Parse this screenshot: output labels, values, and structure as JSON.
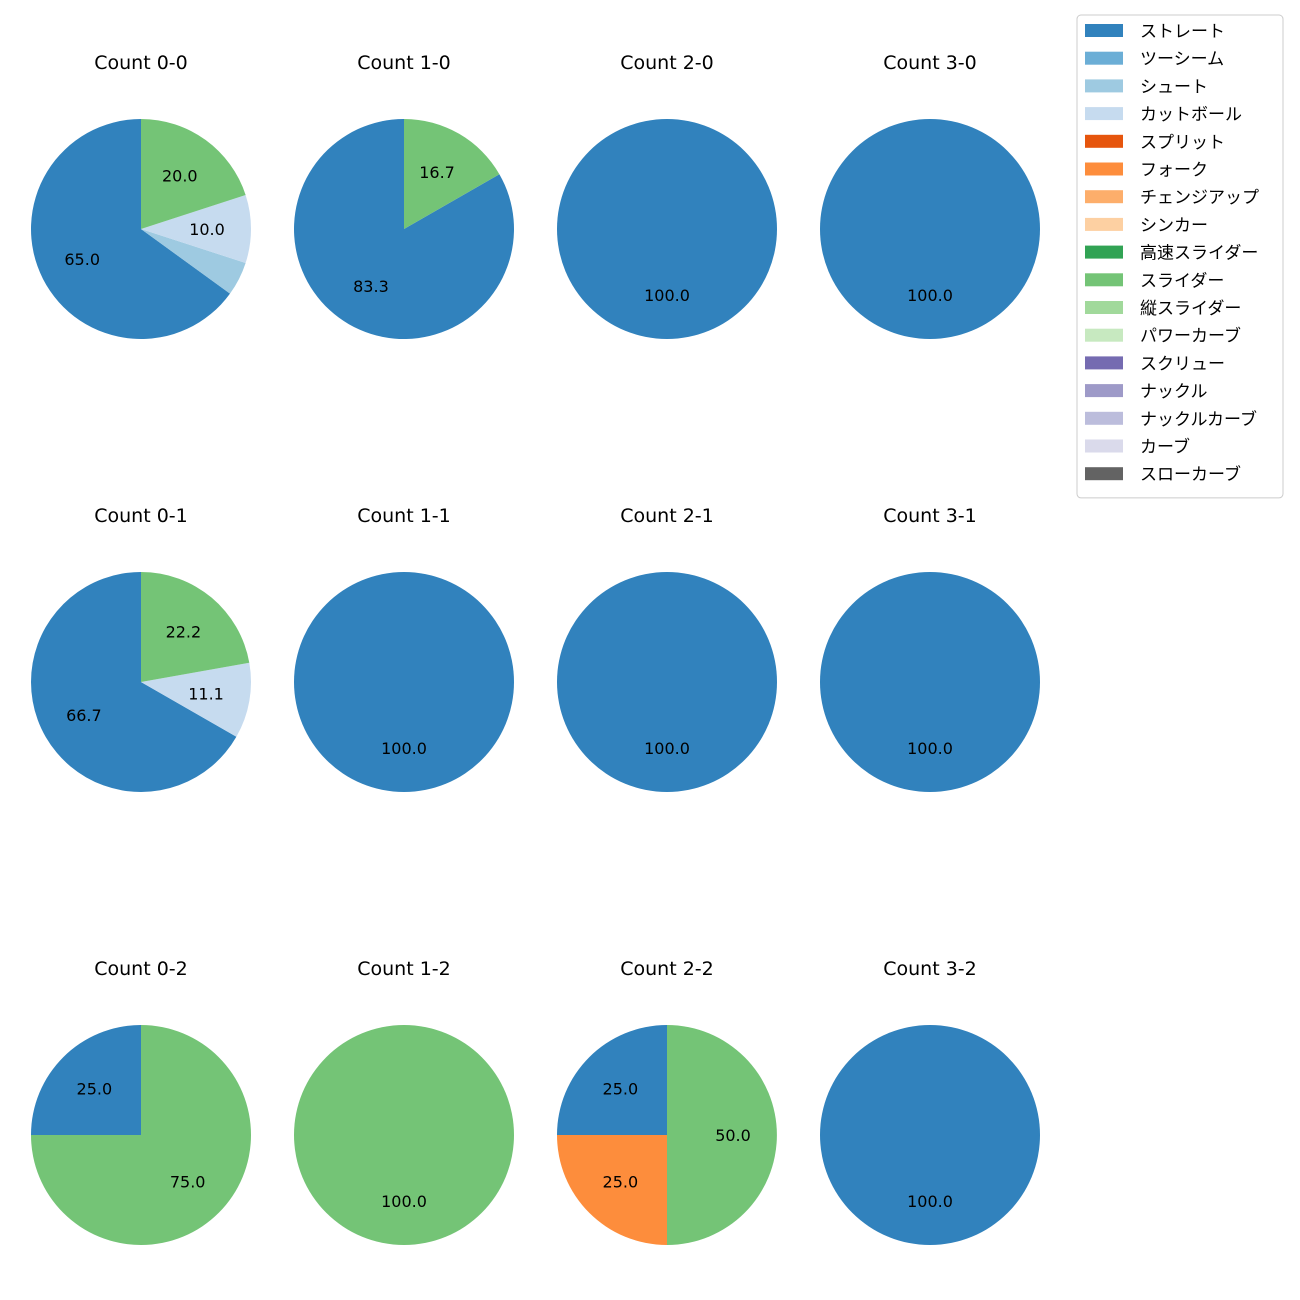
{
  "colors": {
    "ストレート": "#3182bd",
    "ツーシーム": "#6baed6",
    "シュート": "#9ecae1",
    "カットボール": "#c6dbef",
    "スプリット": "#e6550d",
    "フォーク": "#fd8d3c",
    "チェンジアップ": "#fdae6b",
    "シンカー": "#fdd0a2",
    "高速スライダー": "#31a354",
    "スライダー": "#74c476",
    "縦スライダー": "#a1d99b",
    "パワーカーブ": "#c7e9c0",
    "スクリュー": "#756bb1",
    "ナックル": "#9e9ac8",
    "ナックルカーブ": "#bcbddc",
    "カーブ": "#dadaeb",
    "スローカーブ": "#636363"
  },
  "legend": [
    "ストレート",
    "ツーシーム",
    "シュート",
    "カットボール",
    "スプリット",
    "フォーク",
    "チェンジアップ",
    "シンカー",
    "高速スライダー",
    "スライダー",
    "縦スライダー",
    "パワーカーブ",
    "スクリュー",
    "ナックル",
    "ナックルカーブ",
    "カーブ",
    "スローカーブ"
  ],
  "chart_data": [
    {
      "type": "pie",
      "title": "Count 0-0",
      "slices": [
        {
          "label": "ストレート",
          "value": 65.0,
          "shown": "65.0"
        },
        {
          "label": "シュート",
          "value": 5.0,
          "shown": ""
        },
        {
          "label": "カットボール",
          "value": 10.0,
          "shown": "10.0"
        },
        {
          "label": "スライダー",
          "value": 20.0,
          "shown": "20.0"
        }
      ]
    },
    {
      "type": "pie",
      "title": "Count 1-0",
      "slices": [
        {
          "label": "ストレート",
          "value": 83.3,
          "shown": "83.3"
        },
        {
          "label": "スライダー",
          "value": 16.7,
          "shown": "16.7"
        }
      ]
    },
    {
      "type": "pie",
      "title": "Count 2-0",
      "slices": [
        {
          "label": "ストレート",
          "value": 100.0,
          "shown": "100.0"
        }
      ]
    },
    {
      "type": "pie",
      "title": "Count 3-0",
      "slices": [
        {
          "label": "ストレート",
          "value": 100.0,
          "shown": "100.0"
        }
      ]
    },
    {
      "type": "pie",
      "title": "Count 0-1",
      "slices": [
        {
          "label": "ストレート",
          "value": 66.7,
          "shown": "66.7"
        },
        {
          "label": "カットボール",
          "value": 11.1,
          "shown": "11.1"
        },
        {
          "label": "スライダー",
          "value": 22.2,
          "shown": "22.2"
        }
      ]
    },
    {
      "type": "pie",
      "title": "Count 1-1",
      "slices": [
        {
          "label": "ストレート",
          "value": 100.0,
          "shown": "100.0"
        }
      ]
    },
    {
      "type": "pie",
      "title": "Count 2-1",
      "slices": [
        {
          "label": "ストレート",
          "value": 100.0,
          "shown": "100.0"
        }
      ]
    },
    {
      "type": "pie",
      "title": "Count 3-1",
      "slices": [
        {
          "label": "ストレート",
          "value": 100.0,
          "shown": "100.0"
        }
      ]
    },
    {
      "type": "pie",
      "title": "Count 0-2",
      "slices": [
        {
          "label": "ストレート",
          "value": 25.0,
          "shown": "25.0"
        },
        {
          "label": "スライダー",
          "value": 75.0,
          "shown": "75.0"
        }
      ]
    },
    {
      "type": "pie",
      "title": "Count 1-2",
      "slices": [
        {
          "label": "スライダー",
          "value": 100.0,
          "shown": "100.0"
        }
      ]
    },
    {
      "type": "pie",
      "title": "Count 2-2",
      "slices": [
        {
          "label": "ストレート",
          "value": 25.0,
          "shown": "25.0"
        },
        {
          "label": "フォーク",
          "value": 25.0,
          "shown": "25.0"
        },
        {
          "label": "スライダー",
          "value": 50.0,
          "shown": "50.0"
        }
      ]
    },
    {
      "type": "pie",
      "title": "Count 3-2",
      "slices": [
        {
          "label": "ストレート",
          "value": 100.0,
          "shown": "100.0"
        }
      ]
    }
  ]
}
